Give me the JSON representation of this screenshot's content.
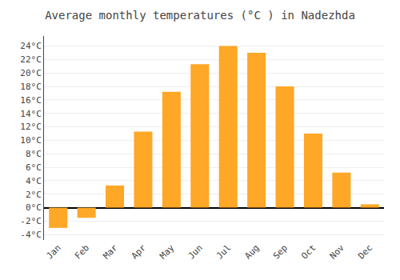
{
  "chart_data": {
    "type": "bar",
    "title": "Average monthly temperatures (°C ) in Nadezhda",
    "categories": [
      "Jan",
      "Feb",
      "Mar",
      "Apr",
      "May",
      "Jun",
      "Jul",
      "Aug",
      "Sep",
      "Oct",
      "Nov",
      "Dec"
    ],
    "values": [
      -3.0,
      -1.5,
      3.3,
      11.3,
      17.2,
      21.3,
      24.0,
      23.0,
      18.0,
      11.0,
      5.2,
      0.5
    ],
    "color": "#FFA726",
    "ylim": [
      -4.8,
      25.5
    ],
    "yticks": [
      {
        "value": -4,
        "label": "-4°C"
      },
      {
        "value": -2,
        "label": "-2°C"
      },
      {
        "value": 0,
        "label": "0°C"
      },
      {
        "value": 2,
        "label": "2°C"
      },
      {
        "value": 4,
        "label": "4°C"
      },
      {
        "value": 6,
        "label": "6°C"
      },
      {
        "value": 8,
        "label": "8°C"
      },
      {
        "value": 10,
        "label": "10°C"
      },
      {
        "value": 12,
        "label": "12°C"
      },
      {
        "value": 14,
        "label": "14°C"
      },
      {
        "value": 16,
        "label": "16°C"
      },
      {
        "value": 18,
        "label": "18°C"
      },
      {
        "value": 20,
        "label": "20°C"
      },
      {
        "value": 22,
        "label": "22°C"
      },
      {
        "value": 24,
        "label": "24°C"
      }
    ],
    "grid": true
  }
}
